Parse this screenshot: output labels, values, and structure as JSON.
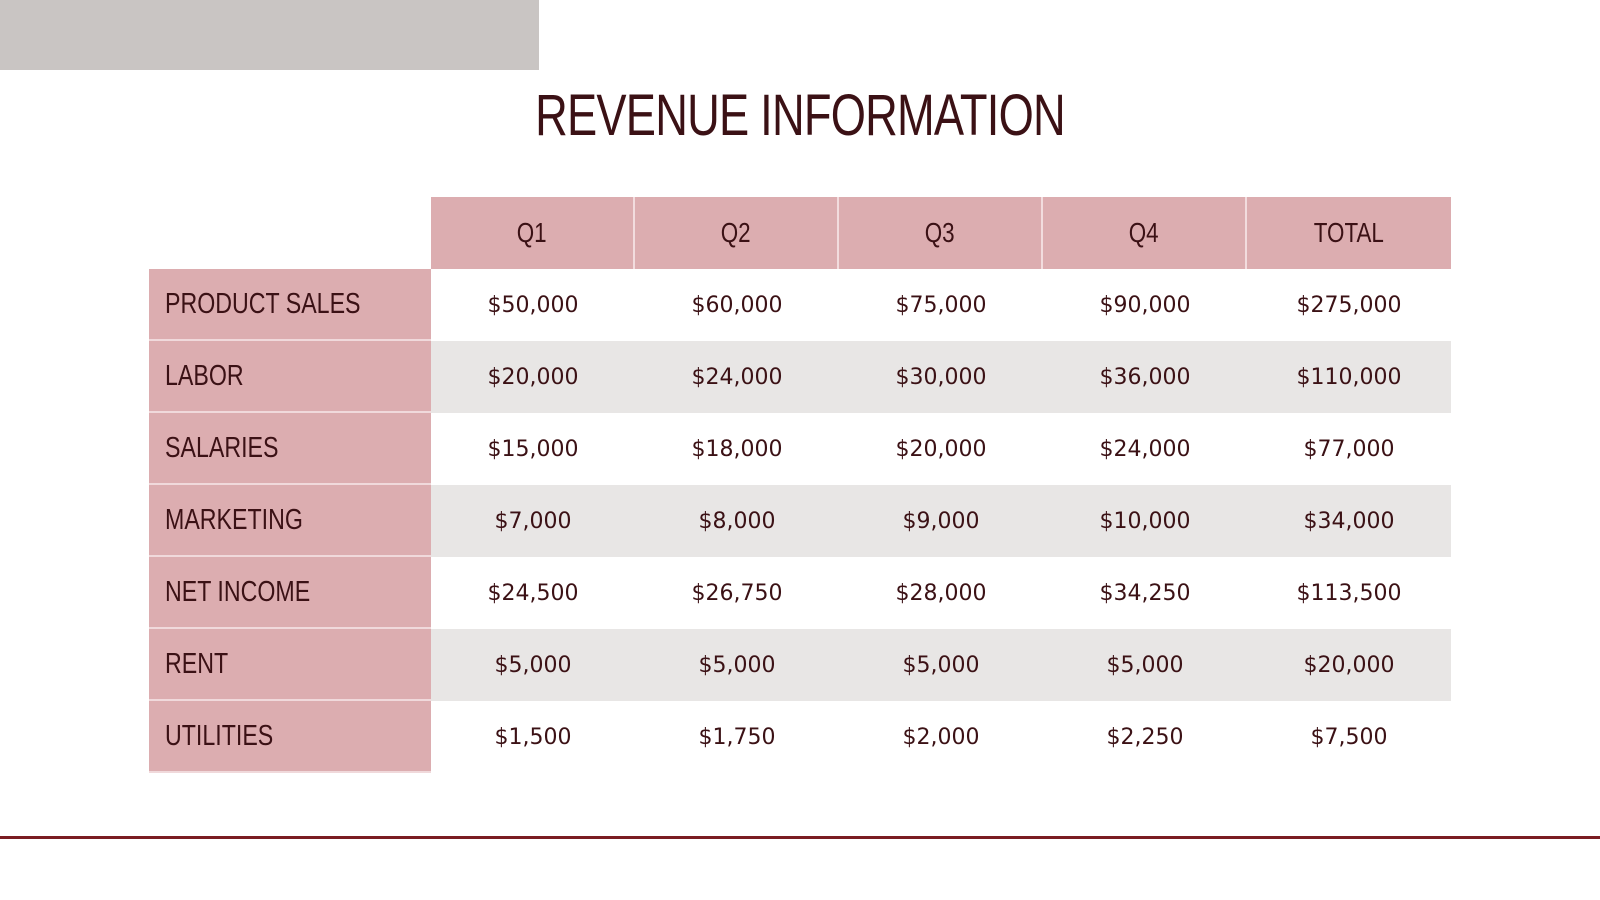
{
  "colors": {
    "corner_block": "#c9c5c3",
    "title_text": "#3b1115",
    "header_fill": "#dcadb0",
    "text": "#3b1115",
    "row_alt": "#e8e6e5",
    "row_plain": "#ffffff",
    "bottom_rule": "#7a1c22"
  },
  "chart_data": {
    "type": "table",
    "title": "REVENUE INFORMATION",
    "columns": [
      "Q1",
      "Q2",
      "Q3",
      "Q4",
      "TOTAL"
    ],
    "rows": [
      {
        "label": "PRODUCT SALES",
        "values": [
          "$50,000",
          "$60,000",
          "$75,000",
          "$90,000",
          "$275,000"
        ]
      },
      {
        "label": "LABOR",
        "values": [
          "$20,000",
          "$24,000",
          "$30,000",
          "$36,000",
          "$110,000"
        ]
      },
      {
        "label": "SALARIES",
        "values": [
          "$15,000",
          "$18,000",
          "$20,000",
          "$24,000",
          "$77,000"
        ]
      },
      {
        "label": "MARKETING",
        "values": [
          "$7,000",
          "$8,000",
          "$9,000",
          "$10,000",
          "$34,000"
        ]
      },
      {
        "label": "NET INCOME",
        "values": [
          "$24,500",
          "$26,750",
          "$28,000",
          "$34,250",
          "$113,500"
        ]
      },
      {
        "label": "RENT",
        "values": [
          "$5,000",
          "$5,000",
          "$5,000",
          "$5,000",
          "$20,000"
        ]
      },
      {
        "label": "UTILITIES",
        "values": [
          "$1,500",
          "$1,750",
          "$2,000",
          "$2,250",
          "$7,500"
        ]
      }
    ]
  }
}
